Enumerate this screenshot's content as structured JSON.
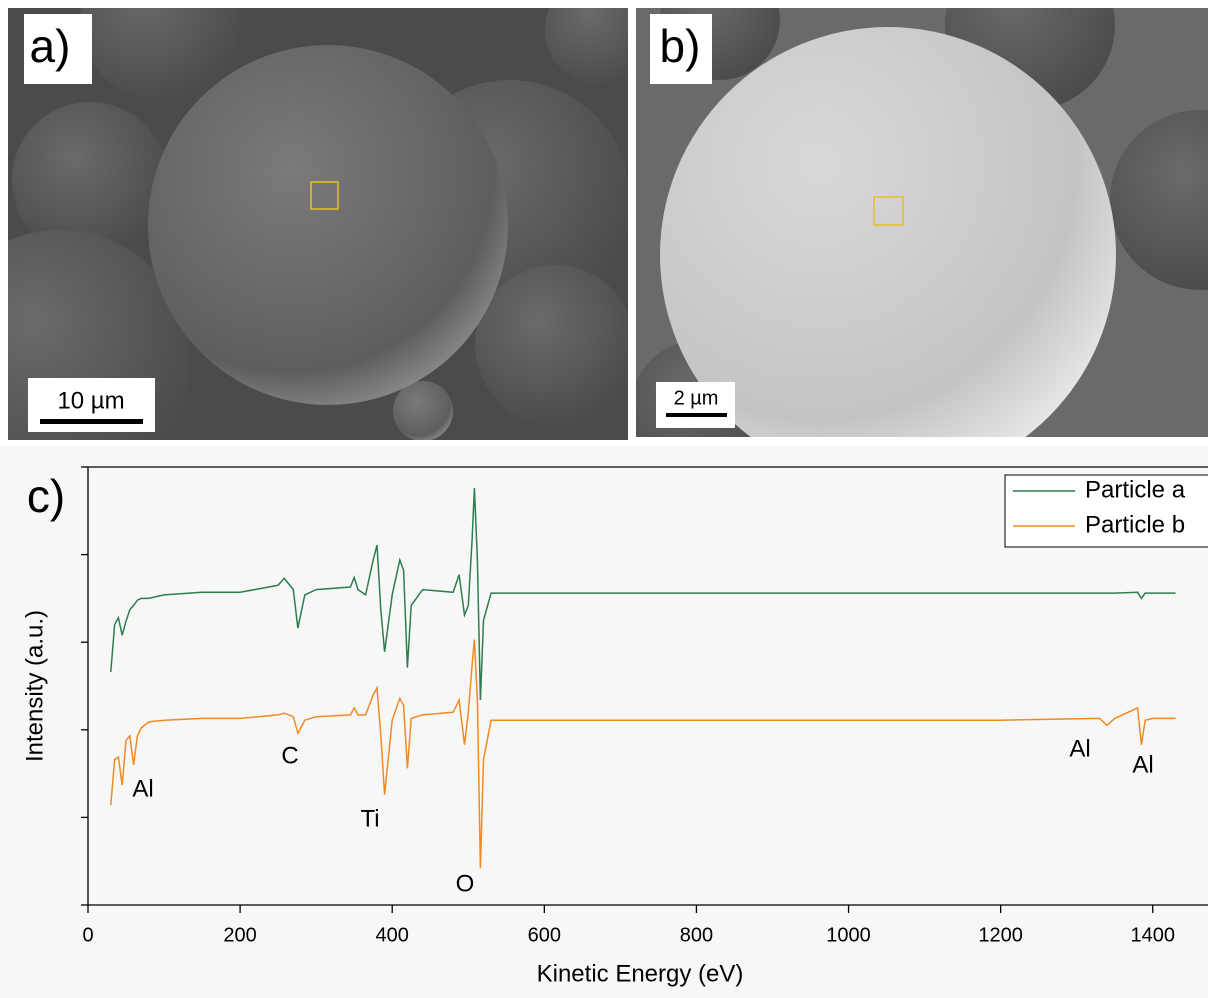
{
  "images": [
    {
      "label": "a)",
      "scale_bar": "10 µm"
    },
    {
      "label": "b)",
      "scale_bar": "2 µm"
    }
  ],
  "chart_data": {
    "type": "line",
    "panel_label": "c)",
    "x_label": "Kinetic Energy (eV)",
    "y_label": "Intensity (a.u.)",
    "x": [
      30,
      35,
      40,
      45,
      50,
      55,
      60,
      65,
      70,
      80,
      100,
      150,
      200,
      250,
      258,
      270,
      276,
      285,
      300,
      345,
      350,
      355,
      365,
      375,
      380,
      385,
      390,
      400,
      410,
      415,
      420,
      425,
      440,
      480,
      488,
      495,
      500,
      505,
      508,
      512,
      516,
      520,
      530,
      600,
      800,
      1000,
      1200,
      1330,
      1340,
      1350,
      1380,
      1385,
      1390,
      1400,
      1430
    ],
    "series": [
      {
        "name": "Particle a",
        "color": "#2e7d4f",
        "values": [
          2.66,
          3.2,
          3.28,
          3.08,
          3.24,
          3.37,
          3.42,
          3.48,
          3.5,
          3.5,
          3.54,
          3.57,
          3.57,
          3.65,
          3.73,
          3.6,
          3.16,
          3.54,
          3.6,
          3.63,
          3.74,
          3.6,
          3.54,
          3.94,
          4.11,
          3.37,
          2.89,
          3.54,
          3.94,
          3.82,
          2.71,
          3.42,
          3.6,
          3.57,
          3.77,
          3.31,
          3.42,
          4.17,
          4.76,
          3.94,
          2.34,
          3.25,
          3.56,
          3.56,
          3.56,
          3.56,
          3.56,
          3.56,
          3.56,
          3.56,
          3.57,
          3.5,
          3.56,
          3.56,
          3.56
        ]
      },
      {
        "name": "Particle b",
        "color": "#f08a24",
        "values": [
          1.14,
          1.66,
          1.69,
          1.37,
          1.88,
          1.93,
          1.6,
          1.93,
          2.02,
          2.09,
          2.11,
          2.13,
          2.13,
          2.17,
          2.19,
          2.15,
          1.96,
          2.11,
          2.15,
          2.17,
          2.25,
          2.17,
          2.17,
          2.4,
          2.48,
          1.94,
          1.26,
          2.11,
          2.36,
          2.28,
          1.56,
          2.13,
          2.17,
          2.2,
          2.34,
          1.83,
          2.2,
          2.74,
          3.03,
          2.34,
          0.42,
          1.66,
          2.11,
          2.11,
          2.11,
          2.11,
          2.11,
          2.13,
          2.05,
          2.13,
          2.25,
          1.83,
          2.11,
          2.13,
          2.13
        ]
      }
    ],
    "annotations": [
      "Al",
      "C",
      "Ti",
      "O",
      "Al",
      "Al"
    ],
    "xlim": [
      0,
      1470
    ],
    "xticks": [
      0,
      200,
      400,
      600,
      800,
      1000,
      1200,
      1400
    ],
    "ylim": [
      0,
      5
    ],
    "yticks": [
      0,
      1,
      2,
      3,
      4,
      5
    ],
    "legend": "top-right"
  }
}
